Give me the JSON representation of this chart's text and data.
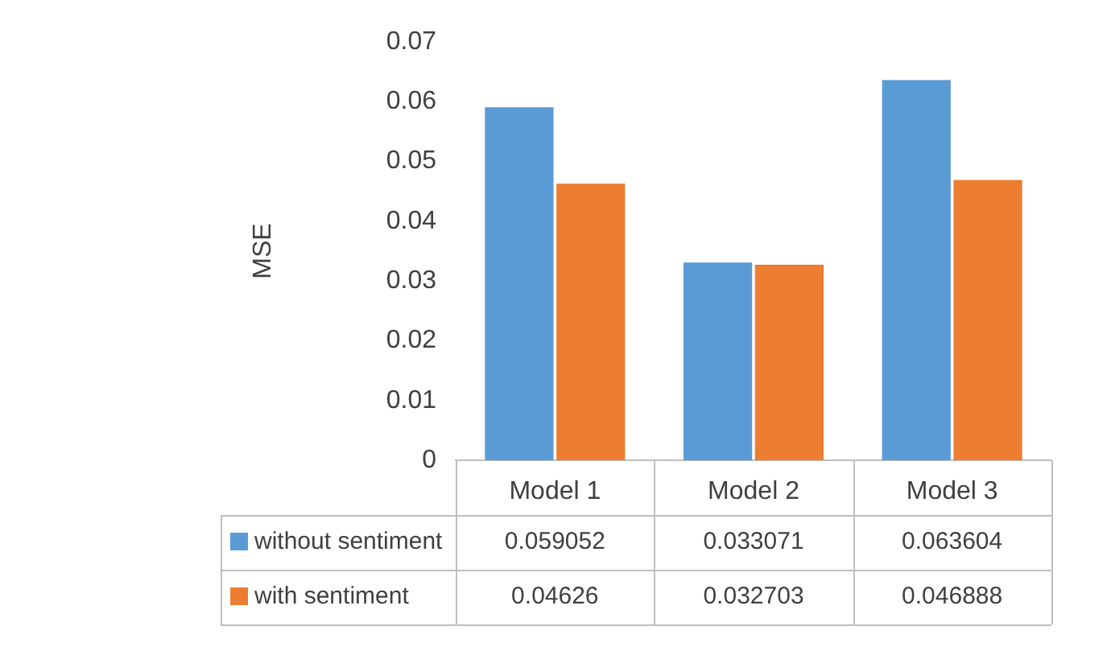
{
  "chart_data": {
    "type": "bar",
    "ylabel": "MSE",
    "categories": [
      "Model 1",
      "Model 2",
      "Model 3"
    ],
    "series": [
      {
        "name": "without sentiment",
        "color": "#5b9bd5",
        "values": [
          0.059052,
          0.033071,
          0.063604
        ]
      },
      {
        "name": "with sentiment",
        "color": "#ed7d31",
        "values": [
          0.04626,
          0.032703,
          0.046888
        ]
      }
    ],
    "ylim": [
      0,
      0.07
    ],
    "yticks": [
      0,
      0.01,
      0.02,
      0.03,
      0.04,
      0.05,
      0.06,
      0.07
    ],
    "grid": false,
    "legend": "bottom",
    "data_labels": true
  }
}
